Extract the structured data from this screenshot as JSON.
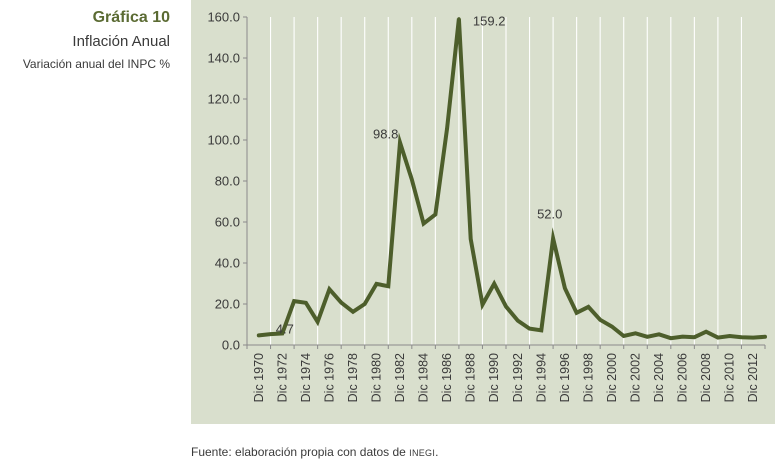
{
  "caption": {
    "number": "Gráfica 10",
    "title": "Inflación Anual",
    "subtitle": "Variación anual del INPC %"
  },
  "source": {
    "prefix": "Fuente: elaboración propia con datos de ",
    "org": "INEGI",
    "suffix": "."
  },
  "colors": {
    "panel": "#d9dfcd",
    "line": "#4d5e2b",
    "caption_accent": "#5b6b33"
  },
  "chart_data": {
    "type": "line",
    "title": "Gráfica 10 — Inflación Anual",
    "subtitle": "Variación anual del INPC %",
    "xlabel": "",
    "ylabel": "",
    "ylim": [
      0,
      160
    ],
    "yticks": [
      0,
      20,
      40,
      60,
      80,
      100,
      120,
      140,
      160
    ],
    "ytick_labels": [
      "0.0",
      "20.0",
      "40.0",
      "60.0",
      "80.0",
      "100.0",
      "120.0",
      "140.0",
      "160.0"
    ],
    "grid": "vertical",
    "x": [
      1970,
      1971,
      1972,
      1973,
      1974,
      1975,
      1976,
      1977,
      1978,
      1979,
      1980,
      1981,
      1982,
      1983,
      1984,
      1985,
      1986,
      1987,
      1988,
      1989,
      1990,
      1991,
      1992,
      1993,
      1994,
      1995,
      1996,
      1997,
      1998,
      1999,
      2000,
      2001,
      2002,
      2003,
      2004,
      2005,
      2006,
      2007,
      2008,
      2009,
      2010,
      2011,
      2012,
      2013
    ],
    "xtick_labels": [
      "Dic 1970",
      "Dic 1972",
      "Dic 1974",
      "Dic 1976",
      "Dic 1978",
      "Dic 1980",
      "Dic 1982",
      "Dic 1984",
      "Dic 1986",
      "Dic 1988",
      "Dic 1990",
      "Dic 1992",
      "Dic 1994",
      "Dic 1996",
      "Dic 1998",
      "Dic 2000",
      "Dic 2002",
      "Dic 2004",
      "Dic 2006",
      "Dic 2008",
      "Dic 2010",
      "Dic 2012"
    ],
    "series": [
      {
        "name": "Inflación anual",
        "values": [
          4.7,
          5.3,
          5.6,
          21.4,
          20.6,
          11.3,
          27.2,
          20.7,
          16.2,
          20.0,
          29.8,
          28.7,
          98.8,
          80.8,
          59.2,
          63.7,
          105.7,
          159.2,
          51.7,
          19.7,
          29.9,
          18.8,
          11.9,
          8.0,
          7.1,
          52.0,
          27.7,
          15.7,
          18.6,
          12.3,
          9.0,
          4.4,
          5.7,
          4.0,
          5.2,
          3.3,
          4.1,
          3.8,
          6.5,
          3.6,
          4.4,
          3.8,
          3.6,
          4.0
        ]
      }
    ],
    "annotations": [
      {
        "x": 1970,
        "label": "4.7"
      },
      {
        "x": 1982,
        "label": "98.8"
      },
      {
        "x": 1987,
        "label": "159.2"
      },
      {
        "x": 1995,
        "label": "52.0"
      }
    ]
  }
}
